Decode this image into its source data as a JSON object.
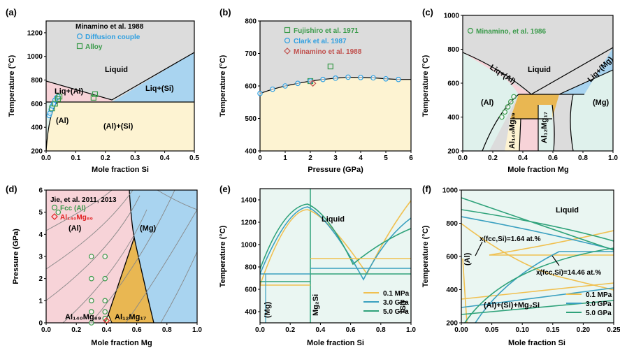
{
  "figure": {
    "panels": [
      {
        "id": "a",
        "label": "(a)"
      },
      {
        "id": "b",
        "label": "(b)"
      },
      {
        "id": "c",
        "label": "(c)"
      },
      {
        "id": "d",
        "label": "(d)"
      },
      {
        "id": "e",
        "label": "(e)"
      },
      {
        "id": "f",
        "label": "(f)"
      }
    ]
  },
  "chart_data": [
    {
      "id": "a",
      "type": "scatter",
      "xlabel": "Mole fraction Si",
      "ylabel": "Temperature (°C)",
      "xlim": [
        0,
        0.5
      ],
      "ylim": [
        200,
        1300
      ],
      "xticks": [
        "0.0",
        "0.1",
        "0.2",
        "0.3",
        "0.4",
        "0.5"
      ],
      "yticks": [
        "200",
        "400",
        "600",
        "800",
        "1000",
        "1200"
      ],
      "legend_title": "Minamino et al. 1988",
      "series": [
        {
          "name": "Diffusion couple",
          "marker": "circle",
          "color": "#2f9fe0",
          "x": [
            0.01,
            0.013,
            0.017,
            0.021,
            0.025,
            0.03,
            0.035,
            0.04
          ],
          "y": [
            500,
            520,
            550,
            580,
            600,
            630,
            650,
            660
          ]
        },
        {
          "name": "Alloy",
          "marker": "square",
          "color": "#3a9a4a",
          "x": [
            0.02,
            0.03,
            0.04,
            0.045,
            0.16,
            0.165
          ],
          "y": [
            560,
            600,
            640,
            660,
            650,
            680
          ]
        }
      ],
      "regions": [
        "Liquid",
        "Liq+(Al)",
        "Liq+(Si)",
        "(Al)",
        "(Al)+(Si)"
      ],
      "colors": {
        "liquid": "#dcdcdc",
        "liq_al": "#f7d3d8",
        "liq_si": "#a9d4f0",
        "al_si": "#fdf3d2",
        "al": "#dff1ec"
      }
    },
    {
      "id": "b",
      "type": "line",
      "xlabel": "Pressure (GPa)",
      "ylabel": "Temperature (°C)",
      "xlim": [
        0,
        6
      ],
      "ylim": [
        400,
        800
      ],
      "xticks": [
        "0",
        "1",
        "2",
        "3",
        "4",
        "5",
        "6"
      ],
      "yticks": [
        "400",
        "500",
        "600",
        "700",
        "800"
      ],
      "series": [
        {
          "name": "Fujishiro et al. 1971",
          "marker": "square",
          "color": "#3a9a4a",
          "x": [
            2.0,
            2.8
          ],
          "y": [
            615,
            660
          ]
        },
        {
          "name": "Clark et al. 1987",
          "marker": "circle",
          "color": "#2f9fe0",
          "x": [
            0,
            0.5,
            1.0,
            1.5,
            2.0,
            2.5,
            3.0,
            3.5,
            4.0,
            4.5,
            5.0,
            5.5
          ],
          "y": [
            577,
            590,
            600,
            608,
            615,
            620,
            624,
            627,
            626,
            625,
            622,
            620
          ]
        },
        {
          "name": "Minamino et al. 1988",
          "marker": "diamond",
          "color": "#c0504d",
          "x": [
            2.1
          ],
          "y": [
            608
          ]
        }
      ]
    },
    {
      "id": "c",
      "type": "scatter",
      "xlabel": "Mole fraction Mg",
      "ylabel": "Temperature (°C)",
      "xlim": [
        0,
        1
      ],
      "ylim": [
        200,
        1000
      ],
      "xticks": [
        "0.0",
        "0.2",
        "0.4",
        "0.6",
        "0.8",
        "1.0"
      ],
      "yticks": [
        "200",
        "400",
        "600",
        "800",
        "1000"
      ],
      "series": [
        {
          "name": "Minamino, et al. 1986",
          "marker": "circle",
          "color": "#3a9a4a",
          "x": [
            0.26,
            0.28,
            0.3,
            0.32,
            0.34
          ],
          "y": [
            400,
            430,
            460,
            490,
            520
          ]
        }
      ],
      "regions": [
        "Liquid",
        "Liq+(Al)",
        "Liq+(Mg)",
        "(Al)",
        "(Mg)",
        "Al₁₄₀Mg₈₉",
        "Al₁₂Mg₁₇"
      ]
    },
    {
      "id": "d",
      "type": "scatter",
      "xlabel": "Mole fraction Mg",
      "ylabel": "Pressure (GPa)",
      "xlim": [
        0,
        1
      ],
      "ylim": [
        0,
        6
      ],
      "xticks": [
        "0.0",
        "0.2",
        "0.4",
        "0.6",
        "0.8",
        "1.0"
      ],
      "yticks": [
        "0",
        "1",
        "2",
        "3",
        "4",
        "5",
        "6"
      ],
      "legend_title": "Jie, et al. 2011, 2013",
      "series": [
        {
          "name": "Fcc (Al)",
          "marker": "circle",
          "color": "#3a9a4a",
          "x": [
            0.08,
            0.3,
            0.3,
            0.3,
            0.3,
            0.3,
            0.39,
            0.39,
            0.39,
            0.39,
            0.39
          ],
          "y": [
            5.0,
            3.0,
            2.0,
            1.0,
            0.5,
            0.0,
            3.0,
            2.0,
            1.0,
            0.5,
            0.2
          ]
        },
        {
          "name": "Al₁₄₀Mg₈₉",
          "marker": "diamond",
          "color": "#e02020",
          "x": [
            0.4
          ],
          "y": [
            0.1
          ]
        }
      ],
      "regions": [
        "(Al)",
        "(Mg)",
        "Al₁₄₀Mg₈₉",
        "Al₁₂Mg₁₇"
      ]
    },
    {
      "id": "e",
      "type": "line",
      "xlabel": "Mole fraction Si",
      "ylabel": "Temperature (°C)",
      "xlim": [
        0,
        1
      ],
      "ylim": [
        300,
        1500
      ],
      "xticks": [
        "0.0",
        "0.2",
        "0.4",
        "0.6",
        "0.8",
        "1.0"
      ],
      "yticks": [
        "400",
        "600",
        "800",
        "1000",
        "1200",
        "1400"
      ],
      "series": [
        {
          "name": "0.1 MPa",
          "color": "#f0c050"
        },
        {
          "name": "3.0 GPa",
          "color": "#3aa0c0"
        },
        {
          "name": "5.0 GPa",
          "color": "#2fa27a"
        }
      ],
      "regions": [
        "Liquid",
        "(Mg)",
        "Mg₂Si",
        "(Si)"
      ]
    },
    {
      "id": "f",
      "type": "line",
      "xlabel": "Mole fraction Si",
      "ylabel": "Temperature (°C)",
      "xlim": [
        0,
        0.25
      ],
      "ylim": [
        200,
        1000
      ],
      "xticks": [
        "0.00",
        "0.05",
        "0.10",
        "0.15",
        "0.20",
        "0.25"
      ],
      "yticks": [
        "200",
        "400",
        "600",
        "800",
        "1000"
      ],
      "series": [
        {
          "name": "0.1 MPa",
          "color": "#f0c050"
        },
        {
          "name": "3.0 GPa",
          "color": "#3aa0c0"
        },
        {
          "name": "5.0 GPa",
          "color": "#2fa27a"
        }
      ],
      "annotations": [
        "x(fcc,Si)=1.64 at.%",
        "x(fcc,Si)=14.46 at.%"
      ],
      "regions": [
        "Liquid",
        "(Al)",
        "(Al)+(Si)+Mg₂Si"
      ]
    }
  ]
}
